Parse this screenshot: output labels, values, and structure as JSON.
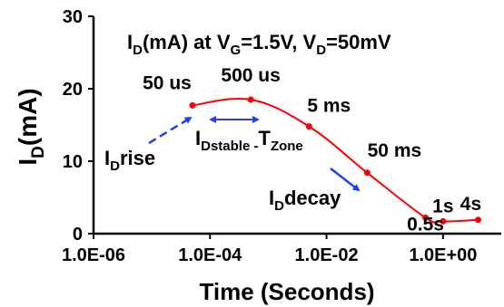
{
  "chart_data": {
    "type": "line",
    "title_parts": {
      "main1": "I",
      "sub1": "D",
      "main2": "(mA) at V",
      "sub2": "G",
      "main3": "=1.5V, V",
      "sub3": "D",
      "main4": "=50mV"
    },
    "xlabel": "Time (Seconds)",
    "ylabel_main": "I",
    "ylabel_sub": "D",
    "ylabel_unit": "(mA)",
    "x_scale": "log",
    "xlim": [
      1e-06,
      10
    ],
    "ylim": [
      0,
      30
    ],
    "x_ticks": [
      {
        "value": 1e-06,
        "label": "1.0E-06"
      },
      {
        "value": 0.0001,
        "label": "1.0E-04"
      },
      {
        "value": 0.01,
        "label": "1.0E-02"
      },
      {
        "value": 1,
        "label": "1.0E+00"
      }
    ],
    "y_ticks": [
      {
        "value": 0,
        "label": "0"
      },
      {
        "value": 10,
        "label": "10"
      },
      {
        "value": 20,
        "label": "20"
      },
      {
        "value": 30,
        "label": "30"
      }
    ],
    "series": [
      {
        "color": "#ff0000",
        "x": [
          5e-05,
          0.0005,
          0.005,
          0.05,
          0.5,
          1,
          4
        ],
        "y": [
          17.7,
          18.5,
          14.8,
          8.4,
          2.2,
          1.7,
          1.9
        ]
      }
    ],
    "point_labels": [
      "50 us",
      "500 us",
      "5 ms",
      "50 ms",
      "0.5s",
      "1s",
      "4s"
    ],
    "annotations": {
      "rise_main": "I",
      "rise_sub": "D",
      "rise_rest": "rise",
      "stable_main": "I",
      "stable_sub1": "Dstable",
      "stable_sep": " -",
      "stable_t": "T",
      "stable_sub2": "Zone",
      "decay_main": "I",
      "decay_sub": "D",
      "decay_rest": "decay",
      "arrow_color": "#1f3ff0"
    }
  }
}
